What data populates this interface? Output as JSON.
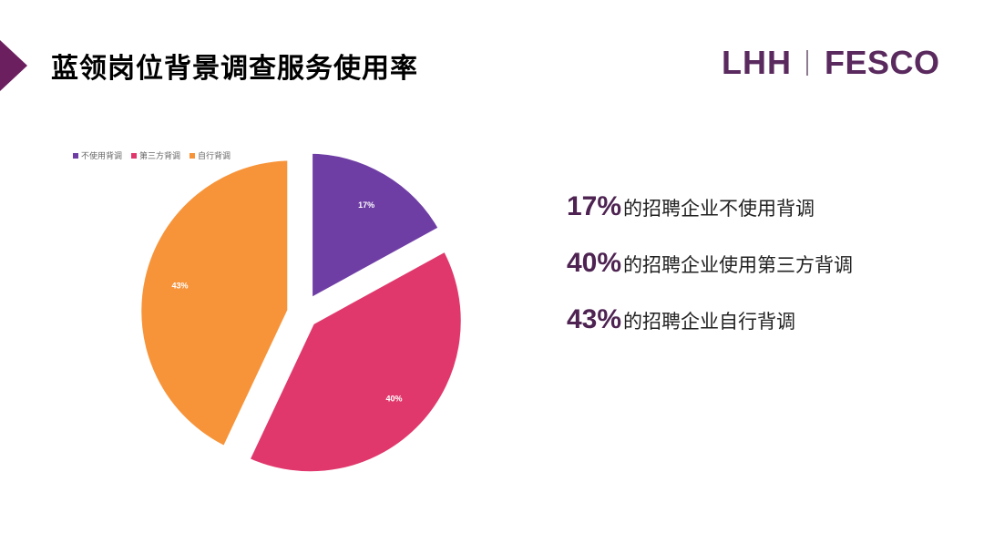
{
  "page": {
    "title": "蓝领岗位背景调查服务使用率",
    "logo": {
      "left": "LHH",
      "right": "FESCO"
    }
  },
  "colors": {
    "brand_purple": "#5a2a5e",
    "accent_marker": "#6b1f5e",
    "stat_percent": "#4e2352"
  },
  "chart_data": {
    "type": "pie",
    "title": "",
    "categories": [
      "不使用背调",
      "第三方背调",
      "自行背调"
    ],
    "values": [
      17,
      40,
      43
    ],
    "unit": "%",
    "data_labels": [
      "17%",
      "40%",
      "43%"
    ],
    "colors": [
      "#6f3ea5",
      "#e0386c",
      "#f7943a"
    ],
    "exploded": true,
    "legend": "top-left"
  },
  "stats": [
    {
      "percent": "17%",
      "text": "的招聘企业不使用背调"
    },
    {
      "percent": "40%",
      "text": "的招聘企业使用第三方背调"
    },
    {
      "percent": "43%",
      "text": "的招聘企业自行背调"
    }
  ]
}
